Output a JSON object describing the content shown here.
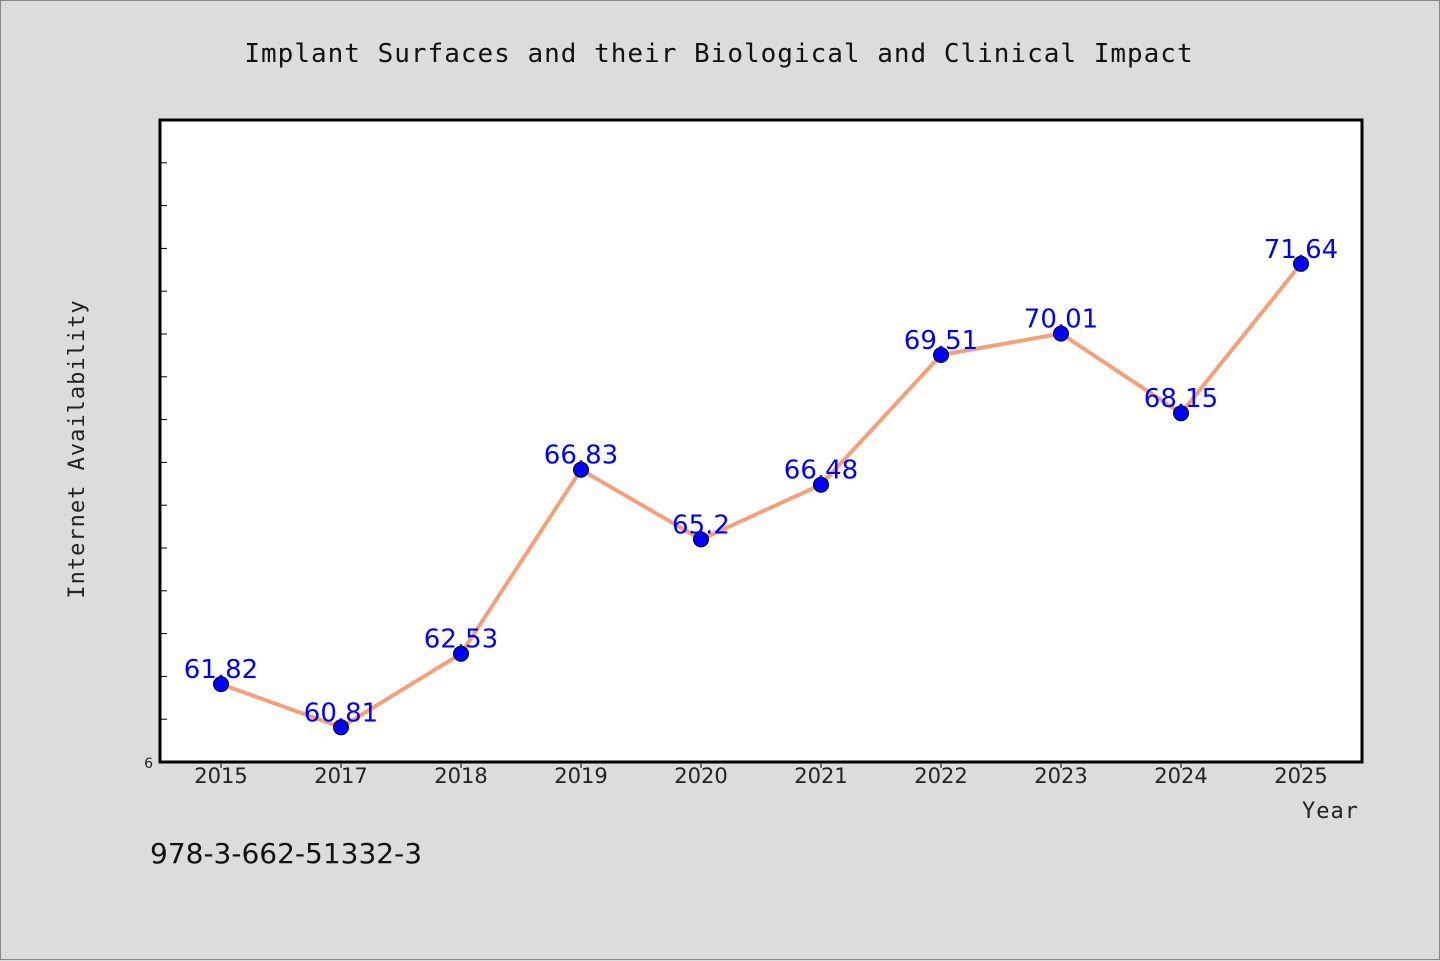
{
  "chart_data": {
    "type": "line",
    "title": "Implant Surfaces and their Biological and Clinical Impact",
    "xlabel": "Year",
    "ylabel": "Internet Availability",
    "categories": [
      "2015",
      "2017",
      "2018",
      "2019",
      "2020",
      "2021",
      "2022",
      "2023",
      "2024",
      "2025"
    ],
    "values": [
      61.82,
      60.81,
      62.53,
      66.83,
      65.2,
      66.48,
      69.51,
      70.01,
      68.15,
      71.64
    ],
    "data_labels": [
      "61.82",
      "60.81",
      "62.53",
      "66.83",
      "65.2",
      "66.48",
      "69.51",
      "70.01",
      "68.15",
      "71.64"
    ],
    "ylim": [
      60,
      75
    ],
    "y_tick_labels": [
      "6"
    ],
    "line_color": "#f4a07a",
    "marker_color": "#0000ff",
    "label_color": "#0000ff",
    "grid": false
  },
  "footer_text": "978-3-662-51332-3"
}
